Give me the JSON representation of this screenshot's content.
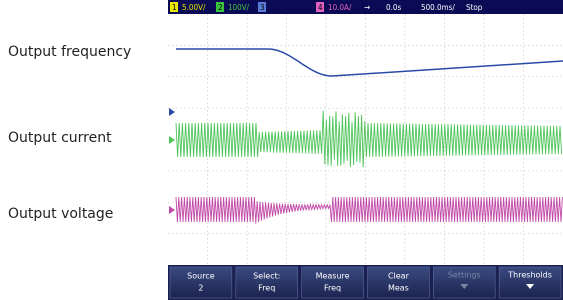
{
  "labels": [
    "Output frequency",
    "Output current",
    "Output voltage"
  ],
  "status_bar": {
    "ch1": "1",
    "ch1_scale": "5.00V/",
    "ch2": "2",
    "ch2_scale": "100V/",
    "ch3": "3",
    "ch4": "4",
    "ch4_scale": "10.0A/",
    "trigger": "→",
    "delay": "0.0s",
    "timebase": "500.0ms/",
    "state": "Stop"
  },
  "softkeys": [
    {
      "label": "Source",
      "value": "2"
    },
    {
      "label": "Select:",
      "value": "Freq"
    },
    {
      "label": "Measure",
      "value": "Freq"
    },
    {
      "label": "Clear",
      "value": "Meas"
    },
    {
      "label": "Settings"
    },
    {
      "label": "Thresholds"
    }
  ]
}
